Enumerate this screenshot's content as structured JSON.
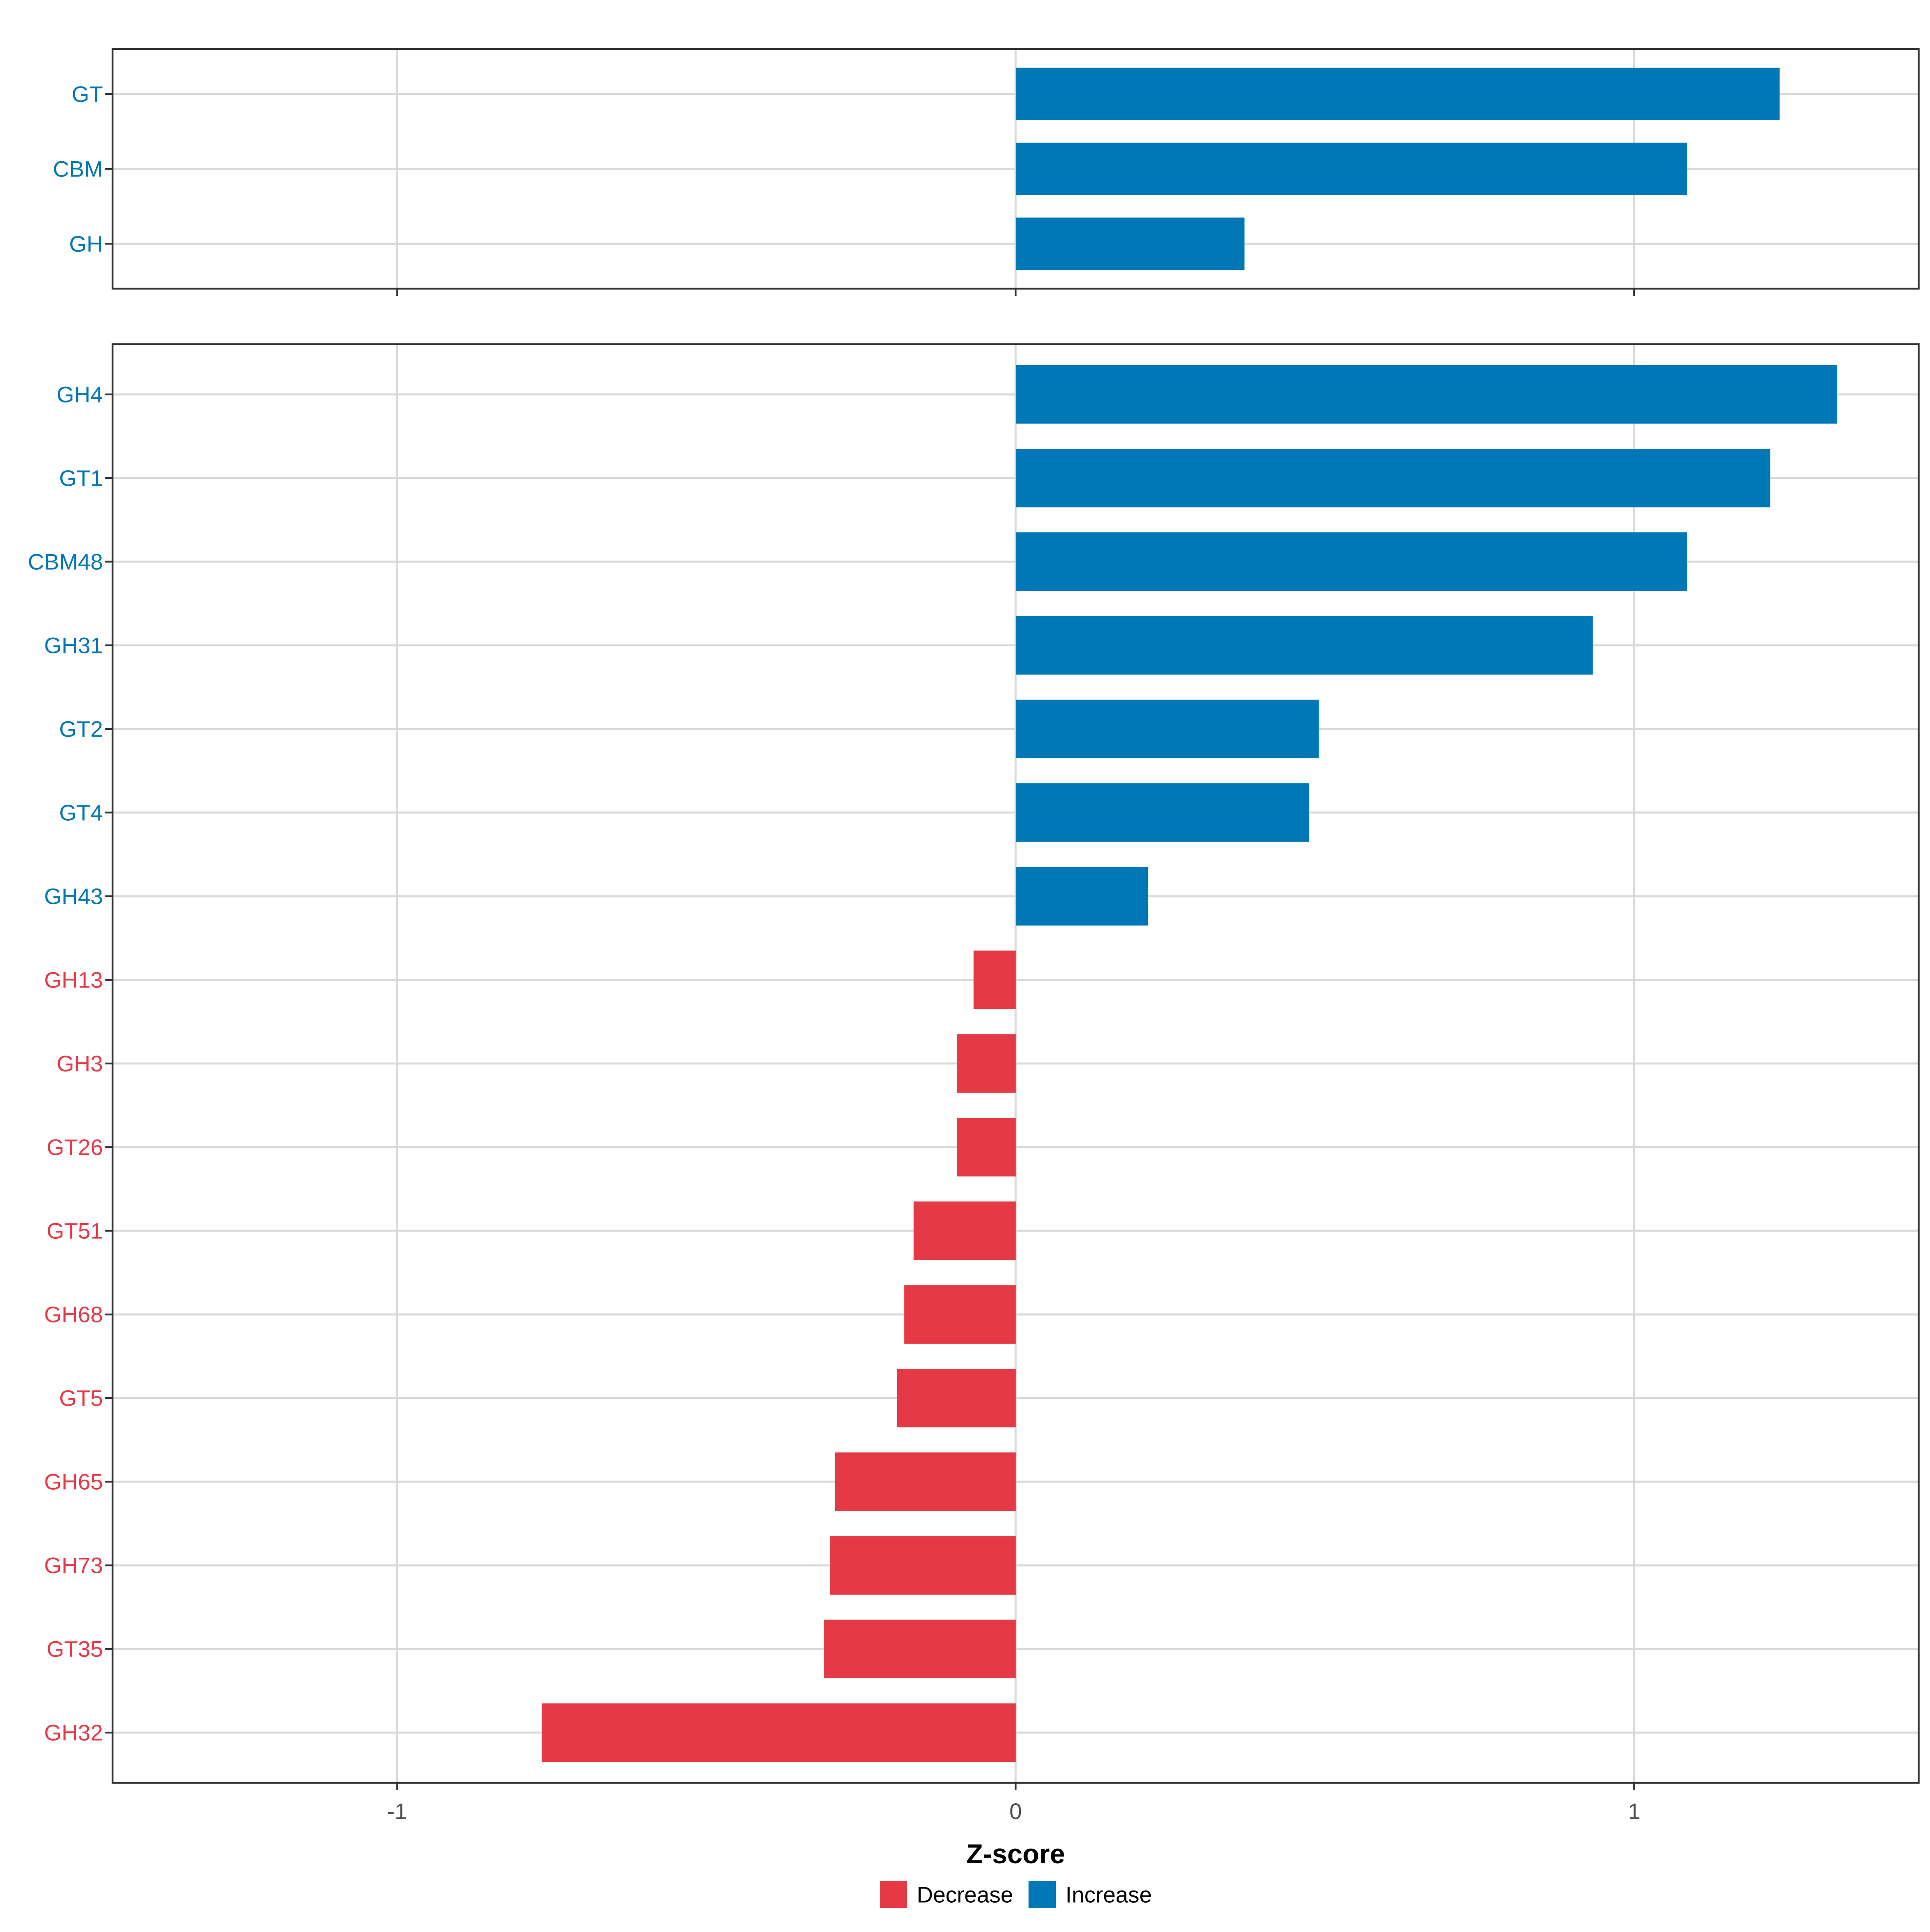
{
  "chart_data": [
    {
      "type": "bar",
      "orientation": "horizontal",
      "panel": "top",
      "categories": [
        "GT",
        "CBM",
        "GH"
      ],
      "values": [
        1.235,
        1.085,
        0.37
      ],
      "direction": [
        "Increase",
        "Increase",
        "Increase"
      ],
      "xlim": [
        -1.46,
        1.46
      ],
      "xticks": [
        -1,
        0,
        1
      ],
      "grid": true
    },
    {
      "type": "bar",
      "orientation": "horizontal",
      "panel": "bottom",
      "categories": [
        "GH4",
        "GT1",
        "CBM48",
        "GH31",
        "GT2",
        "GT4",
        "GH43",
        "GH13",
        "GH3",
        "GT26",
        "GT51",
        "GH68",
        "GT5",
        "GH65",
        "GH73",
        "GT35",
        "GH32"
      ],
      "values": [
        1.328,
        1.22,
        1.085,
        0.933,
        0.49,
        0.474,
        0.214,
        -0.068,
        -0.095,
        -0.095,
        -0.165,
        -0.18,
        -0.192,
        -0.292,
        -0.3,
        -0.31,
        -0.766
      ],
      "direction": [
        "Increase",
        "Increase",
        "Increase",
        "Increase",
        "Increase",
        "Increase",
        "Increase",
        "Decrease",
        "Decrease",
        "Decrease",
        "Decrease",
        "Decrease",
        "Decrease",
        "Decrease",
        "Decrease",
        "Decrease",
        "Decrease"
      ],
      "xlim": [
        -1.46,
        1.46
      ],
      "xticks": [
        -1,
        0,
        1
      ],
      "xlabel": "Z-score",
      "grid": true
    }
  ],
  "tick_labels": [
    "-1",
    "0",
    "1"
  ],
  "legend": {
    "position": "bottom",
    "items": [
      {
        "label": "Decrease",
        "color": "#E63946"
      },
      {
        "label": "Increase",
        "color": "#0077B6"
      }
    ]
  },
  "colors": {
    "Increase": "#0077B6",
    "Decrease": "#E63946",
    "grid": "#D9D9D9",
    "frame": "#333333",
    "tick_text": "#4D4D4D"
  }
}
